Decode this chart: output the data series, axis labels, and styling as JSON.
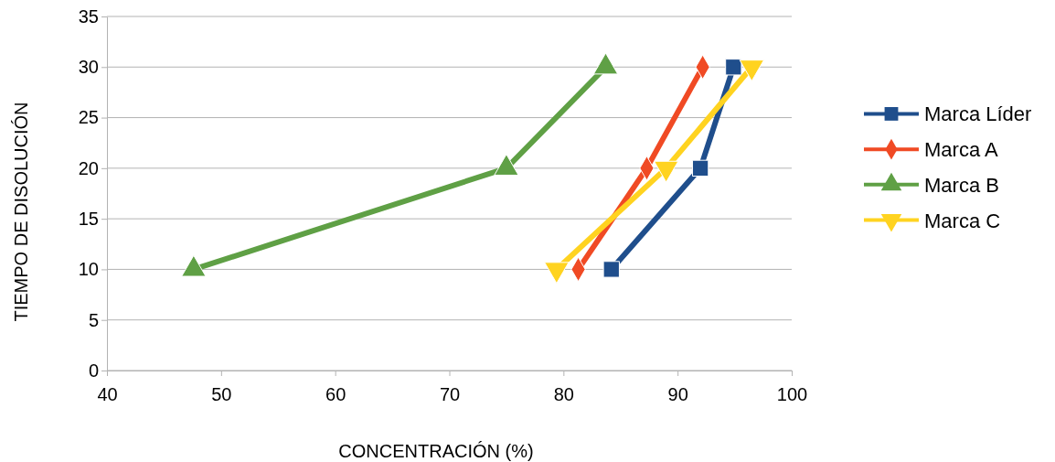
{
  "chart_data": {
    "type": "line",
    "xlabel": "CONCENTRACIÓN (%)",
    "ylabel": "TIEMPO DE DISOLUCIÓN",
    "xlim": [
      40,
      100
    ],
    "xticks": [
      40,
      50,
      60,
      70,
      80,
      90,
      100
    ],
    "ylim": [
      0,
      35
    ],
    "yticks": [
      0,
      5,
      10,
      15,
      20,
      25,
      30,
      35
    ],
    "grid": "y",
    "legend": "right",
    "series": [
      {
        "name": "Marca Líder",
        "color": "#1f4e8c",
        "marker": "square",
        "x": [
          84.2,
          92,
          94.9
        ],
        "values": [
          10,
          20,
          30
        ]
      },
      {
        "name": "Marca A",
        "color": "#f04a24",
        "marker": "diamond",
        "x": [
          81.3,
          87.3,
          92.2
        ],
        "values": [
          10,
          20,
          30
        ]
      },
      {
        "name": "Marca B",
        "color": "#5fa045",
        "marker": "triangle",
        "x": [
          47.6,
          75,
          83.7
        ],
        "values": [
          10,
          20,
          30
        ]
      },
      {
        "name": "Marca C",
        "color": "#ffd320",
        "marker": "triangle-down",
        "x": [
          79.4,
          89,
          96.5
        ],
        "values": [
          10,
          20,
          30
        ]
      }
    ]
  }
}
